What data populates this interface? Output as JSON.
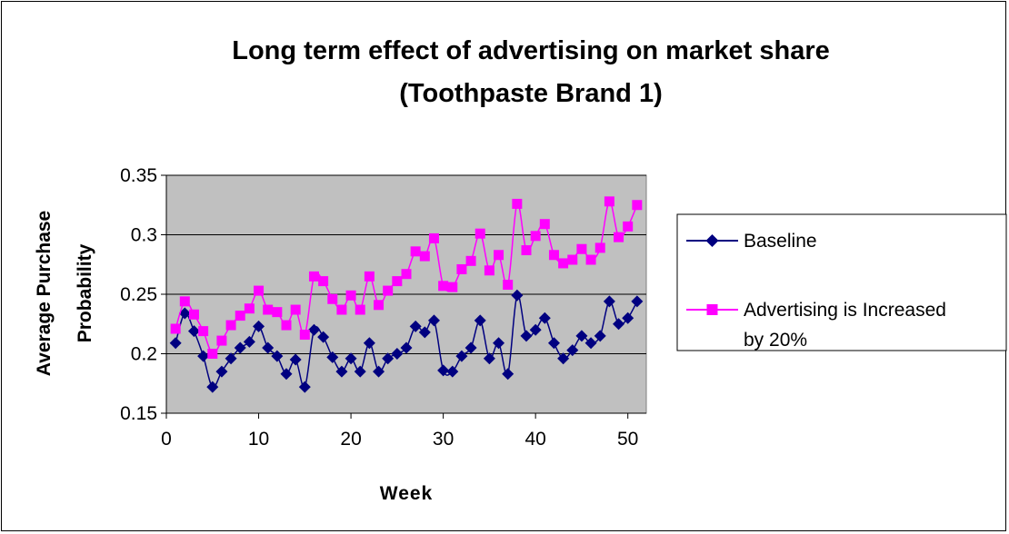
{
  "chart_data": {
    "type": "line",
    "title_line1": "Long term effect of advertising on market share",
    "title_line2": "(Toothpaste Brand 1)",
    "xlabel": "Week",
    "ylabel_line1": "Average Purchase",
    "ylabel_line2": "Probability",
    "xlim": [
      0,
      52
    ],
    "ylim": [
      0.15,
      0.35
    ],
    "x_ticks": [
      0,
      10,
      20,
      30,
      40,
      50
    ],
    "y_ticks": [
      0.15,
      0.2,
      0.25,
      0.3,
      0.35
    ],
    "y_tick_labels": [
      "0.15",
      "0.2",
      "0.25",
      "0.3",
      "0.35"
    ],
    "grid": "horizontal",
    "plot_background": "#C0C0C0",
    "legend_position": "right",
    "x": [
      1,
      2,
      3,
      4,
      5,
      6,
      7,
      8,
      9,
      10,
      11,
      12,
      13,
      14,
      15,
      16,
      17,
      18,
      19,
      20,
      21,
      22,
      23,
      24,
      25,
      26,
      27,
      28,
      29,
      30,
      31,
      32,
      33,
      34,
      35,
      36,
      37,
      38,
      39,
      40,
      41,
      42,
      43,
      44,
      45,
      46,
      47,
      48,
      49,
      50,
      51
    ],
    "series": [
      {
        "name": "Baseline",
        "color": "#000080",
        "marker": "diamond",
        "values": [
          0.209,
          0.234,
          0.219,
          0.198,
          0.172,
          0.185,
          0.196,
          0.205,
          0.21,
          0.223,
          0.205,
          0.198,
          0.183,
          0.195,
          0.172,
          0.22,
          0.214,
          0.197,
          0.185,
          0.196,
          0.185,
          0.209,
          0.185,
          0.196,
          0.2,
          0.205,
          0.223,
          0.218,
          0.228,
          0.186,
          0.185,
          0.198,
          0.205,
          0.228,
          0.196,
          0.209,
          0.183,
          0.249,
          0.215,
          0.22,
          0.23,
          0.209,
          0.196,
          0.203,
          0.215,
          0.209,
          0.215,
          0.244,
          0.225,
          0.23,
          0.244
        ]
      },
      {
        "name": "Advertising is Increased",
        "name_line2": "by 20%",
        "color": "#FF00FF",
        "marker": "square",
        "values": [
          0.221,
          0.244,
          0.233,
          0.219,
          0.2,
          0.211,
          0.224,
          0.232,
          0.238,
          0.253,
          0.237,
          0.235,
          0.224,
          0.237,
          0.216,
          0.265,
          0.261,
          0.246,
          0.237,
          0.249,
          0.237,
          0.265,
          0.241,
          0.253,
          0.261,
          0.267,
          0.286,
          0.282,
          0.297,
          0.257,
          0.256,
          0.271,
          0.278,
          0.301,
          0.27,
          0.283,
          0.258,
          0.326,
          0.287,
          0.299,
          0.309,
          0.283,
          0.276,
          0.279,
          0.288,
          0.279,
          0.289,
          0.328,
          0.298,
          0.307,
          0.325
        ]
      }
    ]
  }
}
